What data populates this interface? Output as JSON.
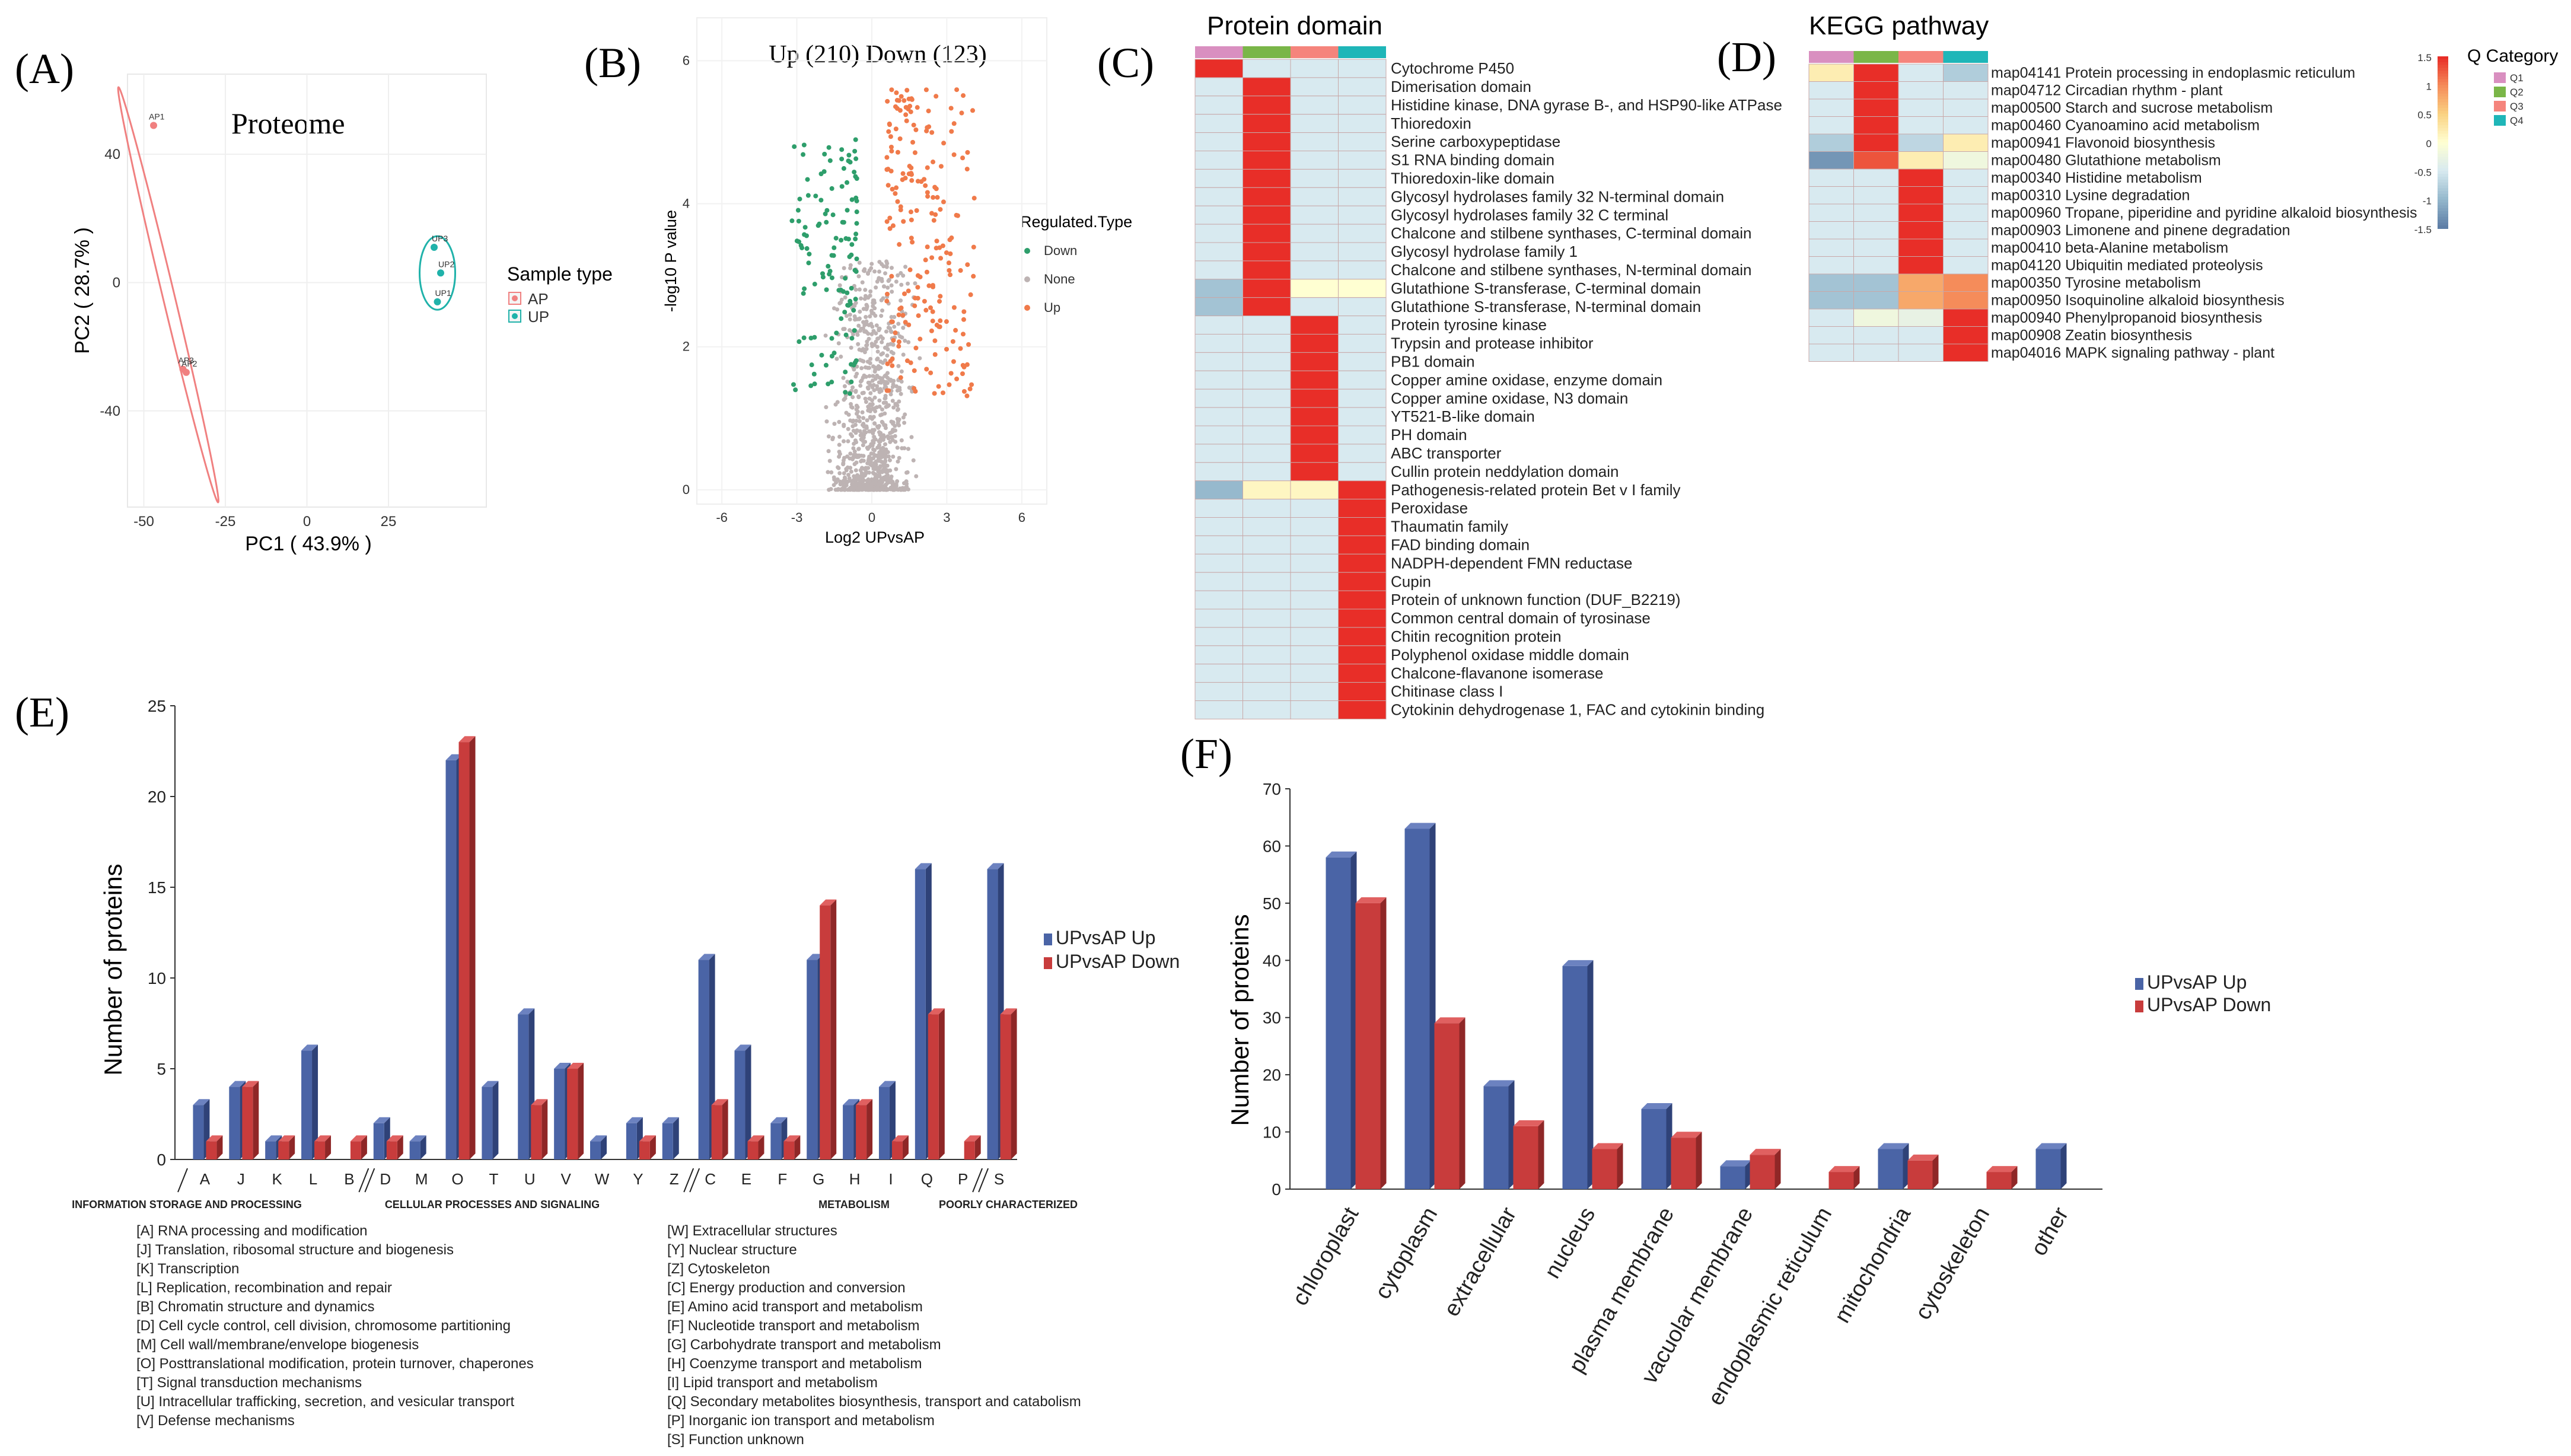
{
  "panels": {
    "A": {
      "letter": "(A)"
    },
    "B": {
      "letter": "(B)"
    },
    "C": {
      "letter": "(C)"
    },
    "D": {
      "letter": "(D)"
    },
    "E": {
      "letter": "(E)"
    },
    "F": {
      "letter": "(F)"
    }
  },
  "chart_data": [
    {
      "id": "A",
      "type": "scatter",
      "title": "Proteome",
      "xlabel": "PC1 ( 43.9% )",
      "ylabel": "PC2 ( 28.7% )",
      "xlim": [
        -55,
        55
      ],
      "ylim": [
        -70,
        65
      ],
      "xticks": [
        -50,
        -25,
        0,
        25
      ],
      "yticks": [
        -40,
        0,
        40
      ],
      "legend_title": "Sample type",
      "series": [
        {
          "name": "AP",
          "color": "#f08080",
          "points": [
            {
              "label": "AP1",
              "x": -47,
              "y": 49
            },
            {
              "label": "AP3",
              "x": -38,
              "y": -27
            },
            {
              "label": "AP2",
              "x": -37,
              "y": -28
            }
          ]
        },
        {
          "name": "UP",
          "color": "#20b2aa",
          "points": [
            {
              "label": "UP3",
              "x": 39,
              "y": 11
            },
            {
              "label": "UP2",
              "x": 41,
              "y": 3
            },
            {
              "label": "UP1",
              "x": 40,
              "y": -6
            }
          ]
        }
      ]
    },
    {
      "id": "B",
      "type": "scatter",
      "title": "Up (210) Down (123)",
      "xlabel": "Log2 UPvsAP",
      "ylabel": "-log10 P value",
      "xlim": [
        -7,
        7
      ],
      "ylim": [
        -0.2,
        6.6
      ],
      "xticks": [
        -6,
        -3,
        0,
        3,
        6
      ],
      "yticks": [
        0,
        2,
        4,
        6
      ],
      "legend_title": "Regulated.Type",
      "series": [
        {
          "name": "Down",
          "color": "#2e9e6b",
          "count": 123
        },
        {
          "name": "None",
          "color": "#bdb3b3"
        },
        {
          "name": "Up",
          "color": "#f07a4a",
          "count": 210
        }
      ]
    },
    {
      "id": "C",
      "type": "heatmap",
      "title": "Protein domain",
      "columns": [
        "Q1",
        "Q2",
        "Q3",
        "Q4"
      ],
      "rows": [
        "Cytochrome P450",
        "Dimerisation domain",
        "Histidine kinase, DNA gyrase B-, and HSP90-like ATPase",
        "Thioredoxin",
        "Serine carboxypeptidase",
        "S1 RNA binding domain",
        "Thioredoxin-like domain",
        "Glycosyl hydrolases family 32 N-terminal domain",
        "Glycosyl hydrolases family 32 C terminal",
        "Chalcone and stilbene synthases, C-terminal domain",
        "Glycosyl hydrolase family 1",
        "Chalcone and stilbene synthases, N-terminal domain",
        "Glutathione S-transferase, C-terminal domain",
        "Glutathione S-transferase, N-terminal domain",
        "Protein tyrosine kinase",
        "Trypsin and protease inhibitor",
        "PB1 domain",
        "Copper amine oxidase, enzyme domain",
        "Copper amine oxidase, N3 domain",
        "YT521-B-like domain",
        "PH domain",
        "ABC transporter",
        "Cullin protein neddylation domain",
        "Pathogenesis-related protein Bet v I family",
        "Peroxidase",
        "Thaumatin family",
        "FAD binding domain",
        "NADPH-dependent FMN reductase",
        "Cupin",
        "Protein of unknown function  (DUF_B2219)",
        "Common central domain of tyrosinase",
        "Chitin recognition protein",
        "Polyphenol oxidase middle domain",
        "Chalcone-flavanone isomerase",
        "Chitinase class I",
        "Cytokinin dehydrogenase 1, FAC and cytokinin binding"
      ],
      "values": [
        [
          1.5,
          -0.5,
          -0.5,
          -0.5
        ],
        [
          -0.5,
          1.5,
          -0.5,
          -0.5
        ],
        [
          -0.5,
          1.5,
          -0.5,
          -0.5
        ],
        [
          -0.5,
          1.5,
          -0.5,
          -0.5
        ],
        [
          -0.5,
          1.5,
          -0.5,
          -0.5
        ],
        [
          -0.5,
          1.5,
          -0.5,
          -0.5
        ],
        [
          -0.5,
          1.5,
          -0.5,
          -0.5
        ],
        [
          -0.5,
          1.5,
          -0.5,
          -0.5
        ],
        [
          -0.5,
          1.5,
          -0.5,
          -0.5
        ],
        [
          -0.5,
          1.5,
          -0.5,
          -0.5
        ],
        [
          -0.5,
          1.5,
          -0.5,
          -0.5
        ],
        [
          -0.5,
          1.5,
          -0.5,
          -0.5
        ],
        [
          -0.9,
          1.5,
          0,
          0
        ],
        [
          -0.9,
          1.5,
          -0.5,
          -0.5
        ],
        [
          -0.5,
          -0.5,
          1.5,
          -0.5
        ],
        [
          -0.5,
          -0.5,
          1.5,
          -0.5
        ],
        [
          -0.5,
          -0.5,
          1.5,
          -0.5
        ],
        [
          -0.5,
          -0.5,
          1.5,
          -0.5
        ],
        [
          -0.5,
          -0.5,
          1.5,
          -0.5
        ],
        [
          -0.5,
          -0.5,
          1.5,
          -0.5
        ],
        [
          -0.5,
          -0.5,
          1.5,
          -0.5
        ],
        [
          -0.5,
          -0.5,
          1.5,
          -0.5
        ],
        [
          -0.5,
          -0.5,
          1.5,
          -0.5
        ],
        [
          -1.0,
          0.1,
          0.1,
          1.5
        ],
        [
          -0.5,
          -0.5,
          -0.5,
          1.5
        ],
        [
          -0.5,
          -0.5,
          -0.5,
          1.5
        ],
        [
          -0.5,
          -0.5,
          -0.5,
          1.5
        ],
        [
          -0.5,
          -0.5,
          -0.5,
          1.5
        ],
        [
          -0.5,
          -0.5,
          -0.5,
          1.5
        ],
        [
          -0.5,
          -0.5,
          -0.5,
          1.5
        ],
        [
          -0.5,
          -0.5,
          -0.5,
          1.5
        ],
        [
          -0.5,
          -0.5,
          -0.5,
          1.5
        ],
        [
          -0.5,
          -0.5,
          -0.5,
          1.5
        ],
        [
          -0.5,
          -0.5,
          -0.5,
          1.5
        ],
        [
          -0.5,
          -0.5,
          -0.5,
          1.5
        ],
        [
          -0.5,
          -0.5,
          -0.5,
          1.5
        ]
      ]
    },
    {
      "id": "D",
      "type": "heatmap",
      "title": "KEGG pathway",
      "columns": [
        "Q1",
        "Q2",
        "Q3",
        "Q4"
      ],
      "rows": [
        "map04141 Protein processing in endoplasmic reticulum",
        "map04712 Circadian rhythm - plant",
        "map00500 Starch and sucrose metabolism",
        "map00460 Cyanoamino acid metabolism",
        "map00941 Flavonoid biosynthesis",
        "map00480 Glutathione metabolism",
        "map00340 Histidine metabolism",
        "map00310 Lysine degradation",
        "map00960 Tropane, piperidine and pyridine alkaloid biosynthesis",
        "map00903 Limonene and pinene degradation",
        "map00410 beta-Alanine metabolism",
        "map04120 Ubiquitin mediated proteolysis",
        "map00350 Tyrosine metabolism",
        "map00950 Isoquinoline alkaloid biosynthesis",
        "map00940 Phenylpropanoid biosynthesis",
        "map00908 Zeatin biosynthesis",
        "map04016 MAPK signaling pathway - plant"
      ],
      "values": [
        [
          0.2,
          1.5,
          -0.5,
          -0.8
        ],
        [
          -0.5,
          1.5,
          -0.5,
          -0.5
        ],
        [
          -0.5,
          1.5,
          -0.5,
          -0.5
        ],
        [
          -0.5,
          1.5,
          -0.5,
          -0.5
        ],
        [
          -0.8,
          1.5,
          -0.7,
          0.2
        ],
        [
          -1.3,
          1.3,
          0.2,
          -0.2
        ],
        [
          -0.5,
          -0.5,
          1.5,
          -0.5
        ],
        [
          -0.5,
          -0.5,
          1.5,
          -0.5
        ],
        [
          -0.5,
          -0.5,
          1.5,
          -0.5
        ],
        [
          -0.5,
          -0.5,
          1.5,
          -0.5
        ],
        [
          -0.5,
          -0.5,
          1.5,
          -0.5
        ],
        [
          -0.5,
          -0.5,
          1.5,
          -0.5
        ],
        [
          -0.9,
          -0.9,
          0.8,
          1.0
        ],
        [
          -0.9,
          -0.9,
          0.8,
          1.0
        ],
        [
          -0.5,
          -0.2,
          -0.3,
          1.5
        ],
        [
          -0.5,
          -0.5,
          -0.5,
          1.5
        ],
        [
          -0.5,
          -0.5,
          -0.5,
          1.5
        ]
      ],
      "legend": {
        "scale_title": "",
        "scale_ticks": [
          "1.5",
          "1",
          "0.5",
          "0",
          "-0.5",
          "-1",
          "-1.5"
        ],
        "category_title": "Q Category",
        "categories": [
          "Q1",
          "Q2",
          "Q3",
          "Q4"
        ],
        "category_colors": [
          "#d98fc0",
          "#7ab648",
          "#f5847c",
          "#1fb6b8"
        ]
      }
    },
    {
      "id": "E",
      "type": "bar",
      "ylabel": "Number of proteins",
      "ylim": [
        0,
        25
      ],
      "yticks": [
        0,
        5,
        10,
        15,
        20,
        25
      ],
      "categories": [
        "A",
        "J",
        "K",
        "L",
        "B",
        "D",
        "M",
        "O",
        "T",
        "U",
        "V",
        "W",
        "Y",
        "Z",
        "C",
        "E",
        "F",
        "G",
        "H",
        "I",
        "Q",
        "P",
        "S"
      ],
      "series": [
        {
          "name": "UPvsAP Up",
          "color": "#4a64a6",
          "values": [
            3,
            4,
            1,
            6,
            0,
            2,
            1,
            22,
            4,
            8,
            5,
            1,
            2,
            2,
            11,
            6,
            2,
            11,
            3,
            4,
            16,
            0,
            16
          ]
        },
        {
          "name": "UPvsAP Down",
          "color": "#c83c3c",
          "values": [
            1,
            4,
            1,
            1,
            1,
            1,
            0,
            23,
            0,
            3,
            5,
            0,
            1,
            0,
            3,
            1,
            1,
            14,
            3,
            1,
            8,
            1,
            8
          ]
        }
      ],
      "groups": [
        "INFORMATION STORAGE AND PROCESSING",
        "CELLULAR PROCESSES AND SIGNALING",
        "METABOLISM",
        "POORLY CHARACTERIZED"
      ],
      "definitions_left": [
        "[A] RNA processing and modification",
        "[J] Translation, ribosomal structure and biogenesis",
        "[K] Transcription",
        "[L] Replication, recombination and repair",
        "[B] Chromatin structure and dynamics",
        "[D] Cell cycle control, cell division, chromosome partitioning",
        "[M] Cell wall/membrane/envelope biogenesis",
        "[O] Posttranslational modification, protein turnover, chaperones",
        "[T] Signal transduction mechanisms",
        "[U] Intracellular trafficking, secretion, and vesicular transport",
        "[V] Defense mechanisms"
      ],
      "definitions_right": [
        "[W] Extracellular structures",
        "[Y] Nuclear structure",
        "[Z] Cytoskeleton",
        "[C] Energy production and conversion",
        "[E] Amino acid transport and metabolism",
        "[F] Nucleotide transport and metabolism",
        "[G] Carbohydrate transport and metabolism",
        "[H] Coenzyme transport and metabolism",
        "[I] Lipid transport and metabolism",
        "[Q] Secondary metabolites biosynthesis, transport and catabolism",
        "[P] Inorganic ion transport and metabolism",
        "[S] Function unknown"
      ]
    },
    {
      "id": "F",
      "type": "bar",
      "ylabel": "Number of proteins",
      "ylim": [
        0,
        70
      ],
      "yticks": [
        0,
        10,
        20,
        30,
        40,
        50,
        60,
        70
      ],
      "categories": [
        "chloroplast",
        "cytoplasm",
        "extracellular",
        "nucleus",
        "plasma membrane",
        "vacuolar membrane",
        "endoplasmic reticulum",
        "mitochondria",
        "cytoskeleton",
        "other"
      ],
      "series": [
        {
          "name": "UPvsAP Up",
          "color": "#4a64a6",
          "values": [
            58,
            63,
            18,
            39,
            14,
            4,
            0,
            7,
            0,
            7
          ]
        },
        {
          "name": "UPvsAP Down",
          "color": "#c83c3c",
          "values": [
            50,
            29,
            11,
            7,
            9,
            6,
            3,
            5,
            3,
            0
          ]
        }
      ]
    }
  ]
}
